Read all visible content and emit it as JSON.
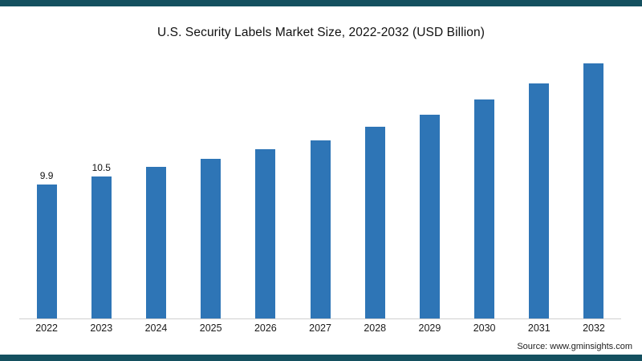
{
  "colors": {
    "frame_strip": "#14505f",
    "bar": "#2e75b6",
    "baseline": "#cfcfcf"
  },
  "source": {
    "label": "Source: www.gminsights.com"
  },
  "chart_data": {
    "type": "bar",
    "title": "U.S. Security Labels Market Size, 2022-2032 (USD Billion)",
    "xlabel": "",
    "ylabel": "",
    "categories": [
      "2022",
      "2023",
      "2024",
      "2025",
      "2026",
      "2027",
      "2028",
      "2029",
      "2030",
      "2031",
      "2032"
    ],
    "values": [
      9.9,
      10.5,
      11.2,
      11.8,
      12.5,
      13.2,
      14.2,
      15.1,
      16.2,
      17.4,
      18.9
    ],
    "data_labels": [
      "9.9",
      "10.5",
      "",
      "",
      "",
      "",
      "",
      "",
      "",
      "",
      ""
    ],
    "ylim": [
      0,
      20
    ],
    "grid": false,
    "legend": false,
    "bar_color": "#2e75b6"
  }
}
